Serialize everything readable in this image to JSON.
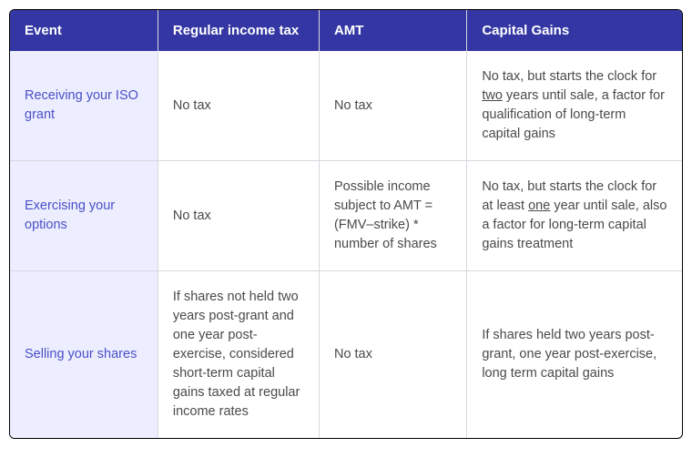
{
  "table": {
    "headers": {
      "event": "Event",
      "regular": "Regular income tax",
      "amt": "AMT",
      "capital": "Capital Gains"
    },
    "rows": [
      {
        "event": "Receiving your ISO grant",
        "regular": "No tax",
        "amt": "No tax",
        "capital_pre": "No tax, but starts the clock for ",
        "capital_underline": "two",
        "capital_post": " years until sale, a factor for qualification of long-term capital gains"
      },
      {
        "event": "Exercising your options",
        "regular": "No tax",
        "amt": "Possible income subject to AMT = (FMV–strike) * number of shares",
        "capital_pre": "No tax, but starts the clock for at least ",
        "capital_underline": "one",
        "capital_post": " year until sale, also a factor for long-term capital gains treatment"
      },
      {
        "event": "Selling your shares",
        "regular": "If shares not held two years post-grant and one year post-exercise, considered short-term capital gains taxed at regular income rates",
        "amt": "No tax",
        "capital_pre": "If shares held two years post-grant, one year post-exercise, long term capital gains",
        "capital_underline": "",
        "capital_post": ""
      }
    ],
    "styling": {
      "header_bg": "#3436a3",
      "header_text": "#ffffff",
      "event_cell_bg": "#eceeff",
      "event_cell_text": "#4a4fc7",
      "body_text": "#4a4a4a",
      "border_color": "#d5d8de",
      "outer_border": "#000000",
      "font_size_header": 15,
      "font_size_body": 14.5,
      "border_radius": 6
    }
  }
}
